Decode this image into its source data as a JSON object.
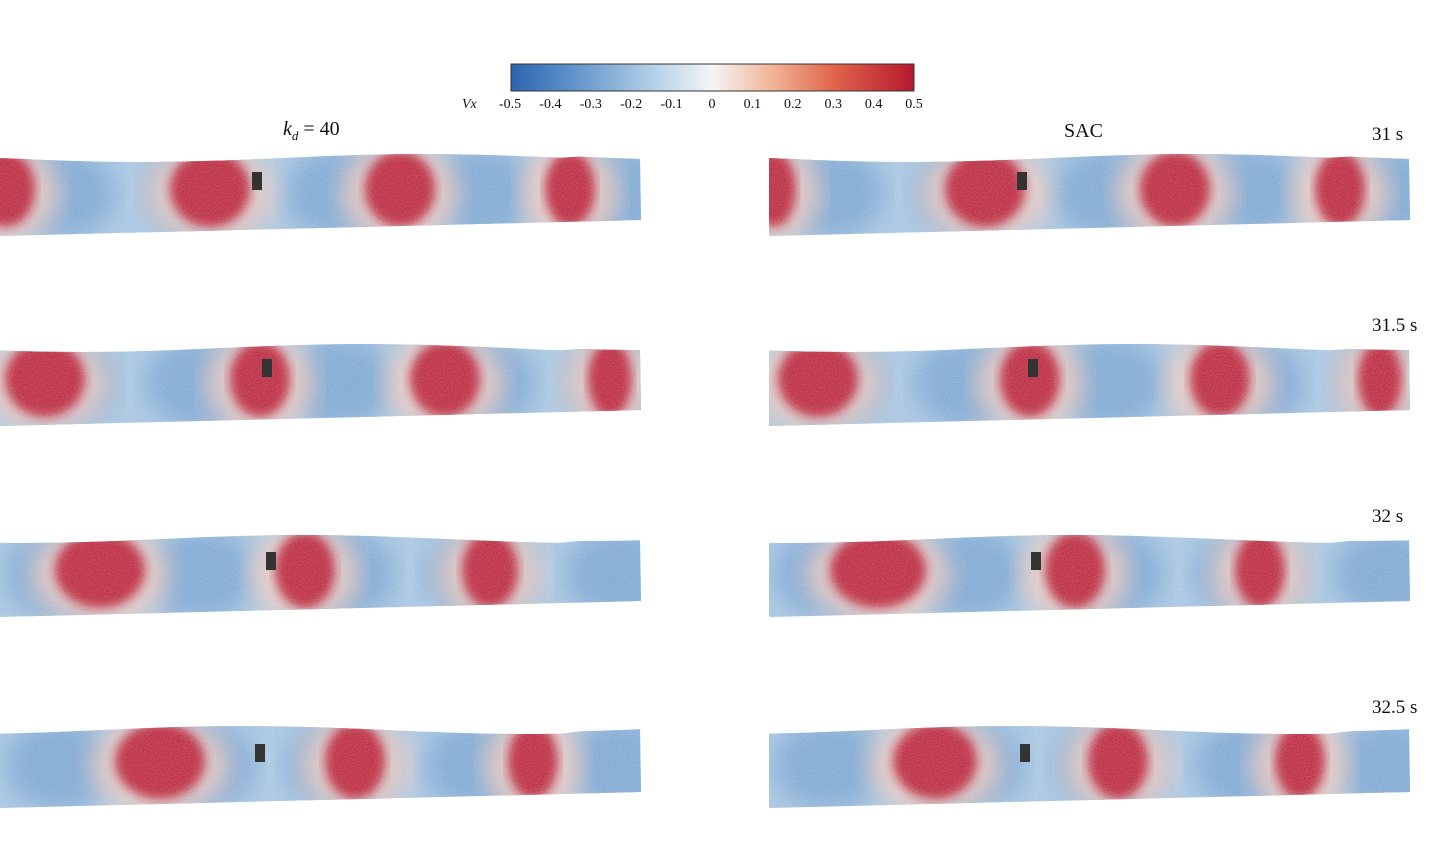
{
  "colorbar": {
    "variable": "Vx",
    "ticks": [
      "-0.5",
      "-0.4",
      "-0.3",
      "-0.2",
      "-0.1",
      "0",
      "0.1",
      "0.2",
      "0.3",
      "0.4",
      "0.5"
    ],
    "range": [
      -0.5,
      0.5
    ],
    "colors": [
      "#2b65b0",
      "#6a9bce",
      "#b8d2e8",
      "#f5f5f5",
      "#f2b89c",
      "#e0664b",
      "#b5182e"
    ]
  },
  "columns": [
    {
      "label_k": "k",
      "label_sub": "d",
      "label_eq": " = 40"
    },
    {
      "label": "SAC"
    }
  ],
  "times": [
    "31 s",
    "31.5 s",
    "32 s",
    "32.5 s"
  ]
}
